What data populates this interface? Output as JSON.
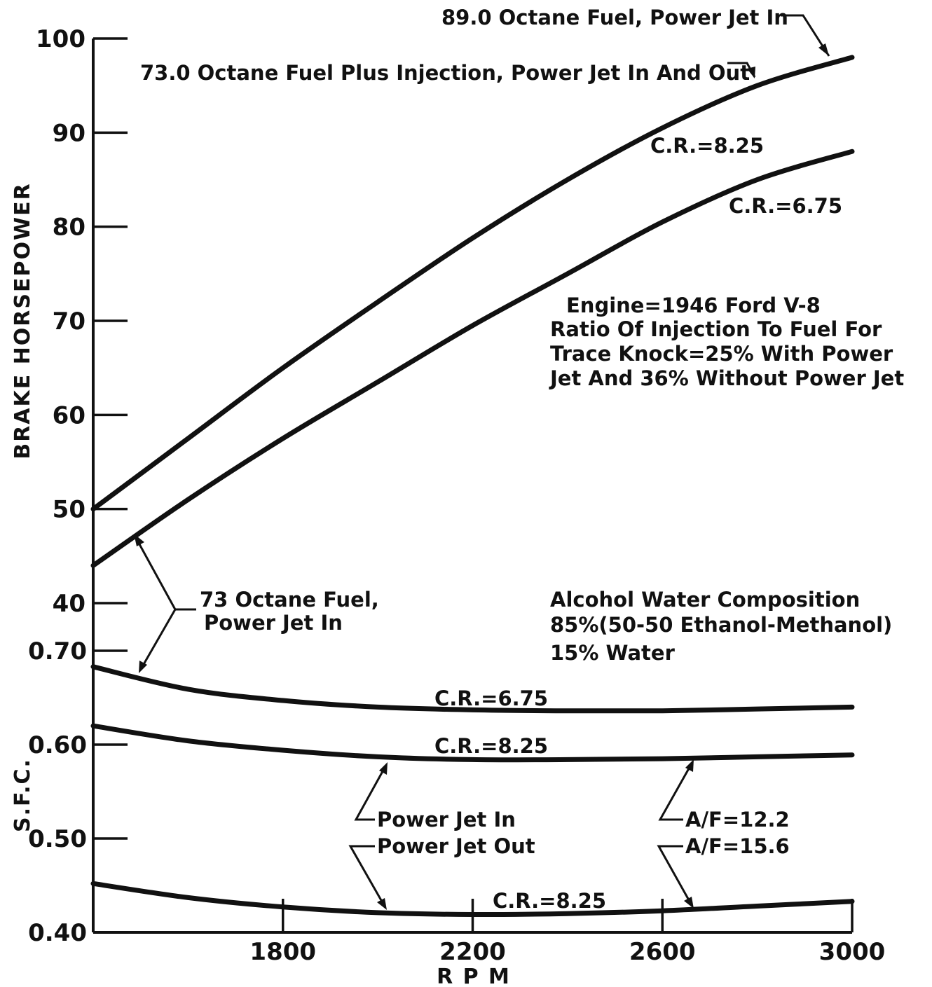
{
  "chart_data": [
    {
      "type": "line",
      "name": "power",
      "ylabel": "BRAKE HORSEPOWER",
      "yticks": [
        "100",
        "90",
        "80",
        "70",
        "60",
        "50",
        "40"
      ],
      "ylim": [
        40,
        100
      ],
      "xlim": [
        1400,
        3000
      ],
      "series": [
        {
          "name": "C.R.=8.25",
          "x": [
            1400,
            1600,
            1800,
            2000,
            2200,
            2400,
            2600,
            2800,
            3000
          ],
          "y": [
            50,
            57.5,
            65,
            72,
            78.8,
            85,
            90.5,
            95,
            98
          ]
        },
        {
          "name": "C.R.=6.75",
          "x": [
            1400,
            1600,
            1800,
            2000,
            2200,
            2400,
            2600,
            2800,
            3000
          ],
          "y": [
            44,
            51,
            57.5,
            63.5,
            69.5,
            75,
            80.5,
            85,
            88
          ]
        }
      ]
    },
    {
      "type": "line",
      "name": "sfc",
      "ylabel": "S.F.C.",
      "yticks": [
        "0.70",
        "0.60",
        "0.50",
        "0.40"
      ],
      "ylim": [
        0.4,
        0.7
      ],
      "xlabel": "R P M",
      "xticks": [
        "1800",
        "2200",
        "2600",
        "3000"
      ],
      "xlim": [
        1400,
        3000
      ],
      "series": [
        {
          "name": "C.R.=6.75",
          "x": [
            1400,
            1600,
            1800,
            2000,
            2200,
            2400,
            2600,
            2800,
            3000
          ],
          "y": [
            0.683,
            0.659,
            0.647,
            0.64,
            0.637,
            0.636,
            0.636,
            0.638,
            0.64
          ]
        },
        {
          "name": "C.R.=8.25",
          "x": [
            1400,
            1600,
            1800,
            2000,
            2200,
            2400,
            2600,
            2800,
            3000
          ],
          "y": [
            0.62,
            0.604,
            0.594,
            0.587,
            0.584,
            0.584,
            0.585,
            0.587,
            0.589
          ]
        },
        {
          "name": "C.R.=8.25",
          "x": [
            1400,
            1600,
            1800,
            2000,
            2200,
            2400,
            2600,
            2800,
            3000
          ],
          "y": [
            0.452,
            0.437,
            0.427,
            0.421,
            0.419,
            0.42,
            0.423,
            0.428,
            0.433
          ]
        }
      ]
    }
  ],
  "annotations": {
    "label_89_octane": "89.0 Octane Fuel, Power Jet In",
    "label_73_injection": "73.0 Octane Fuel Plus Injection, Power Jet In And Out",
    "cr_825_top": "C.R.=8.25",
    "cr_675_top": "C.R.=6.75",
    "engine_note": [
      "Engine=1946 Ford V-8",
      "Ratio Of Injection To Fuel For",
      "Trace Knock=25% With Power",
      "Jet And 36% Without Power Jet"
    ],
    "label_73_octane": [
      "73 Octane Fuel,",
      "Power Jet In"
    ],
    "composition": [
      "Alcohol Water Composition",
      "85%(50-50 Ethanol-Methanol)",
      "15% Water"
    ],
    "cr_675_sfc": "C.R.=6.75",
    "cr_825_sfc": "C.R.=8.25",
    "cr_825_bottom": "C.R.=8.25",
    "power_jet_in": "Power Jet In",
    "power_jet_out": "Power Jet Out",
    "af_122": "A/F=12.2",
    "af_156": "A/F=15.6"
  }
}
